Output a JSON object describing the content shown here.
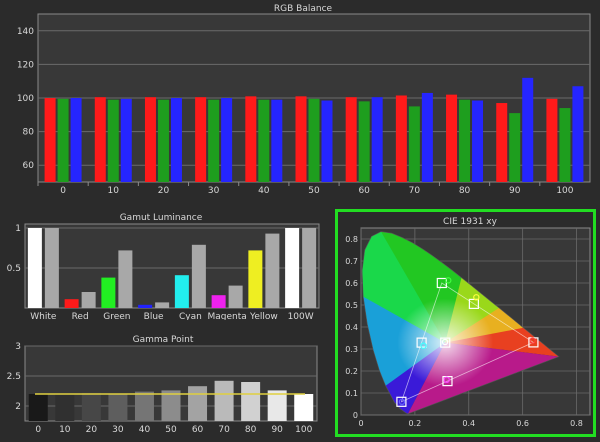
{
  "colors": {
    "background": "#2b2b2b",
    "plot_bg": "#383838",
    "grid": "#6a6a6a",
    "red": "#ff1a1a",
    "green": "#1e9e1e",
    "blue": "#2525ff",
    "highlight_border": "#22dd22",
    "gamma_line": "#e0d040"
  },
  "chart_data": [
    {
      "id": "rgb_balance",
      "type": "bar",
      "title": "RGB Balance",
      "categories": [
        "0",
        "10",
        "20",
        "30",
        "40",
        "50",
        "60",
        "70",
        "80",
        "90",
        "100"
      ],
      "ylim": [
        50,
        150
      ],
      "yticks": [
        60,
        80,
        100,
        120,
        140
      ],
      "grid": true,
      "series": [
        {
          "key": "red",
          "color": "#ff1a1a",
          "values": [
            100,
            100.5,
            100.5,
            100.5,
            101,
            101,
            100.5,
            101.5,
            102,
            97,
            99.5
          ]
        },
        {
          "key": "green",
          "color": "#1e9e1e",
          "values": [
            99.5,
            99,
            99,
            99,
            99,
            99.5,
            98,
            95,
            99,
            91,
            94
          ]
        },
        {
          "key": "blue",
          "color": "#2525ff",
          "values": [
            100,
            99.5,
            100,
            100,
            99,
            98.5,
            100.5,
            103,
            98.5,
            112,
            107
          ]
        }
      ]
    },
    {
      "id": "gamut_luminance",
      "type": "bar",
      "title": "Gamut Luminance",
      "categories": [
        "White",
        "Red",
        "Green",
        "Blue",
        "Cyan",
        "Magenta",
        "Yellow",
        "100W"
      ],
      "ylim": [
        0,
        1.05
      ],
      "yticks": [
        0.5,
        1
      ],
      "ytick_labels": [
        "0.5",
        "1"
      ],
      "grid": true,
      "series": [
        {
          "key": "measured",
          "colors": [
            "#ffffff",
            "#ff1a1a",
            "#22ee22",
            "#2222ff",
            "#22eeee",
            "#ee22ee",
            "#eeee22",
            "#ffffff"
          ],
          "values": [
            1.0,
            0.11,
            0.38,
            0.04,
            0.41,
            0.16,
            0.72,
            1.0
          ]
        },
        {
          "key": "reference",
          "colors": [
            "#a8a8a8"
          ],
          "values": [
            1.0,
            0.2,
            0.72,
            0.07,
            0.79,
            0.28,
            0.93,
            1.0
          ]
        }
      ]
    },
    {
      "id": "gamma_point",
      "type": "bar",
      "title": "Gamma Point",
      "categories": [
        "0",
        "10",
        "20",
        "30",
        "40",
        "50",
        "60",
        "70",
        "80",
        "90",
        "100"
      ],
      "ylim": [
        1.75,
        3.0
      ],
      "yticks": [
        2,
        2.5,
        3
      ],
      "grid": true,
      "values": [
        2.2,
        2.2,
        2.22,
        2.2,
        2.24,
        2.26,
        2.33,
        2.42,
        2.4,
        2.26,
        2.2
      ],
      "target_line": 2.2
    },
    {
      "id": "cie_1931",
      "type": "scatter",
      "title": "CIE 1931 xy",
      "xlim": [
        0,
        0.85
      ],
      "ylim": [
        0,
        0.85
      ],
      "xticks": [
        0,
        0.2,
        0.4,
        0.6,
        0.8
      ],
      "yticks": [
        0,
        0.1,
        0.2,
        0.3,
        0.4,
        0.5,
        0.6,
        0.7,
        0.8
      ],
      "targets": [
        {
          "name": "red",
          "x": 0.64,
          "y": 0.33
        },
        {
          "name": "green",
          "x": 0.3,
          "y": 0.6
        },
        {
          "name": "blue",
          "x": 0.15,
          "y": 0.06
        },
        {
          "name": "yellow",
          "x": 0.419,
          "y": 0.505
        },
        {
          "name": "cyan",
          "x": 0.225,
          "y": 0.329
        },
        {
          "name": "magenta",
          "x": 0.321,
          "y": 0.154
        },
        {
          "name": "white",
          "x": 0.3127,
          "y": 0.329
        }
      ],
      "measured": [
        {
          "name": "red",
          "x": 0.637,
          "y": 0.338,
          "color": "#ff4040"
        },
        {
          "name": "green",
          "x": 0.324,
          "y": 0.612,
          "color": "#40ff40"
        },
        {
          "name": "blue",
          "x": 0.152,
          "y": 0.06,
          "color": "#6060ff"
        },
        {
          "name": "yellow",
          "x": 0.428,
          "y": 0.535,
          "color": "#ffff40"
        },
        {
          "name": "cyan",
          "x": 0.232,
          "y": 0.315,
          "color": "#40ffff"
        },
        {
          "name": "magenta",
          "x": 0.318,
          "y": 0.16,
          "color": "#ff40ff"
        },
        {
          "name": "white",
          "x": 0.312,
          "y": 0.332,
          "color": "#ffffff"
        }
      ]
    }
  ]
}
